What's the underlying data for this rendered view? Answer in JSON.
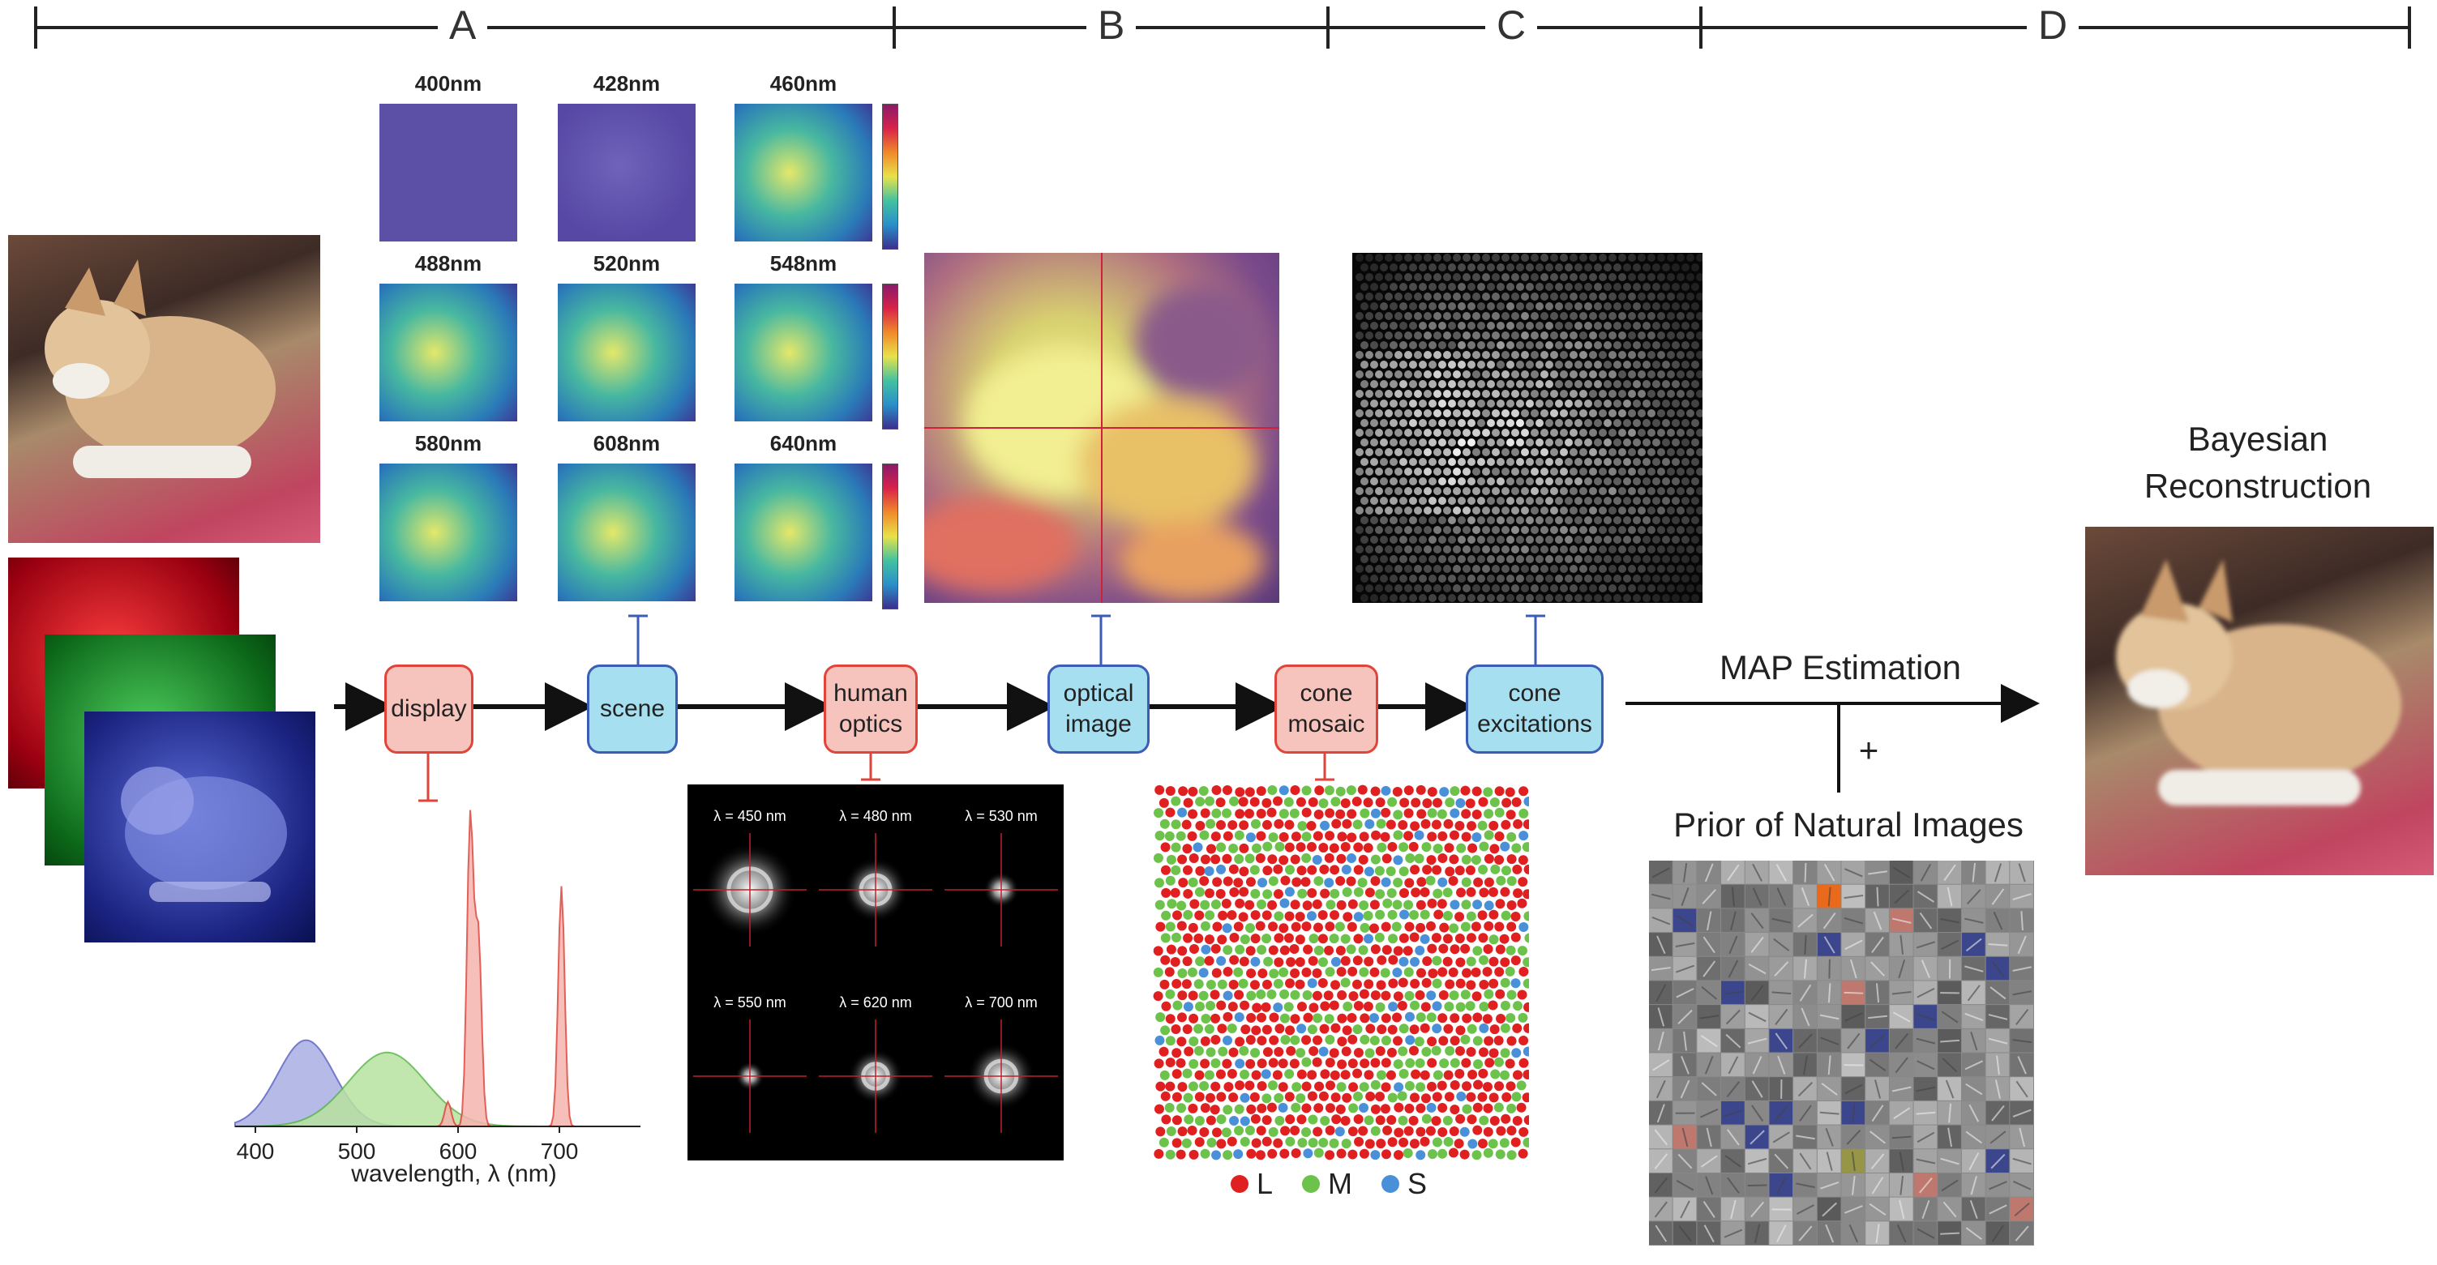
{
  "sections": [
    "A",
    "B",
    "C",
    "D"
  ],
  "wavelength_tiles": [
    "400nm",
    "428nm",
    "460nm",
    "488nm",
    "520nm",
    "548nm",
    "580nm",
    "608nm",
    "640nm"
  ],
  "pipeline": {
    "display": "display",
    "scene": "scene",
    "human_optics_1": "human",
    "human_optics_2": "optics",
    "optical_image_1": "optical",
    "optical_image_2": "image",
    "cone_mosaic_1": "cone",
    "cone_mosaic_2": "mosaic",
    "cone_excitations_1": "cone",
    "cone_excitations_2": "excitations"
  },
  "map_estimation": "MAP Estimation",
  "plus": "+",
  "prior": "Prior of Natural Images",
  "reconstruction_1": "Bayesian",
  "reconstruction_2": "Reconstruction",
  "psf_labels": [
    "λ = 450 nm",
    "λ = 480 nm",
    "λ = 530 nm",
    "λ = 550 nm",
    "λ = 620 nm",
    "λ = 700 nm"
  ],
  "cone_legend": [
    "L",
    "M",
    "S"
  ],
  "colors": {
    "pink_fill": "#f7c4bd",
    "pink_border": "#e0443a",
    "cyan_fill": "#a6dff0",
    "cyan_border": "#3b5db4",
    "L": "#e02020",
    "M": "#6cc24a",
    "S": "#4a90d9"
  },
  "chart_data": {
    "type": "area",
    "xlabel": "wavelength, λ (nm)",
    "xticks": [
      400,
      500,
      600,
      700
    ],
    "xlim": [
      380,
      780
    ],
    "series": [
      {
        "color": "blue",
        "peak": 450,
        "width": 28,
        "height": 0.28
      },
      {
        "color": "green",
        "peak": 530,
        "width": 38,
        "height": 0.24
      },
      {
        "color": "red",
        "peaks": [
          {
            "x": 612,
            "h": 1.0
          },
          {
            "x": 620,
            "h": 0.62
          },
          {
            "x": 702,
            "h": 0.78
          },
          {
            "x": 590,
            "h": 0.08
          }
        ]
      }
    ]
  }
}
